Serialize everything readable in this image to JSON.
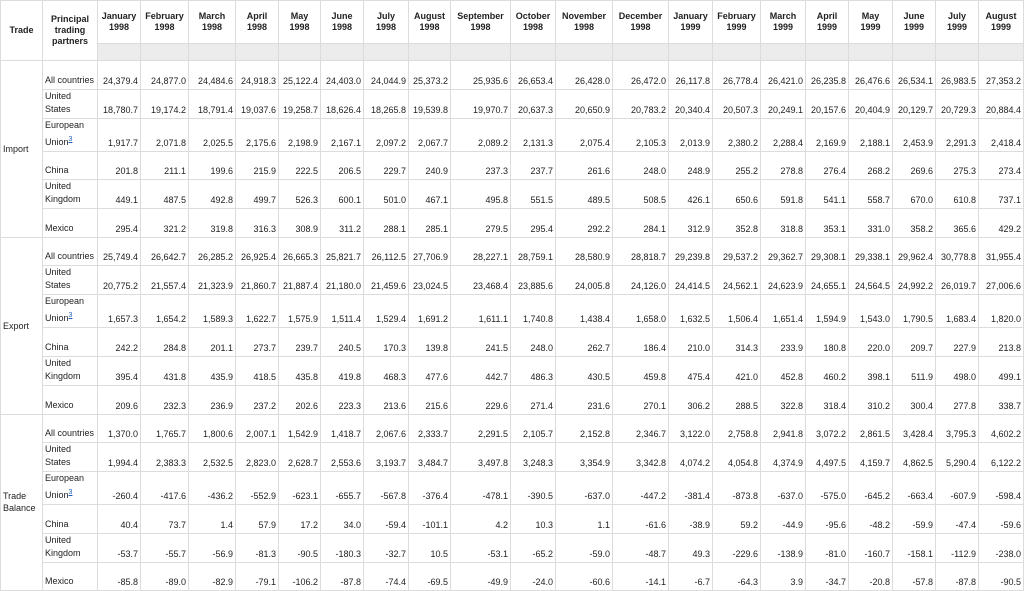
{
  "table": {
    "header": [
      "Trade",
      "Principal trading partners",
      "January 1998",
      "February 1998",
      "March 1998",
      "April 1998",
      "May 1998",
      "June 1998",
      "July 1998",
      "August 1998",
      "September 1998",
      "October 1998",
      "November 1998",
      "December 1998",
      "January 1999",
      "February 1999",
      "March 1999",
      "April 1999",
      "May 1999",
      "June 1999",
      "July 1999",
      "August 1999"
    ],
    "groups": [
      {
        "label": "Import",
        "rows": [
          {
            "partner": "All countries",
            "values": [
              "24,379.4",
              "24,877.0",
              "24,484.6",
              "24,918.3",
              "25,122.4",
              "24,403.0",
              "24,044.9",
              "25,373.2",
              "25,935.6",
              "26,653.4",
              "26,428.0",
              "26,472.0",
              "26,117.8",
              "26,778.4",
              "26,421.0",
              "26,235.8",
              "26,476.6",
              "26,534.1",
              "26,983.5",
              "27,353.2"
            ]
          },
          {
            "partner": "United States",
            "values": [
              "18,780.7",
              "19,174.2",
              "18,791.4",
              "19,037.6",
              "19,258.7",
              "18,626.4",
              "18,265.8",
              "19,539.8",
              "19,970.7",
              "20,637.3",
              "20,650.9",
              "20,783.2",
              "20,340.4",
              "20,507.3",
              "20,249.1",
              "20,157.6",
              "20,404.9",
              "20,129.7",
              "20,729.3",
              "20,884.4"
            ]
          },
          {
            "partner": "European Union",
            "note": "3",
            "values": [
              "1,917.7",
              "2,071.8",
              "2,025.5",
              "2,175.6",
              "2,198.9",
              "2,167.1",
              "2,097.2",
              "2,067.7",
              "2,089.2",
              "2,131.3",
              "2,075.4",
              "2,105.3",
              "2,013.9",
              "2,380.2",
              "2,288.4",
              "2,169.9",
              "2,188.1",
              "2,453.9",
              "2,291.3",
              "2,418.4"
            ]
          },
          {
            "partner": "China",
            "values": [
              "201.8",
              "211.1",
              "199.6",
              "215.9",
              "222.5",
              "206.5",
              "229.7",
              "240.9",
              "237.3",
              "237.7",
              "261.6",
              "248.0",
              "248.9",
              "255.2",
              "278.8",
              "276.4",
              "268.2",
              "269.6",
              "275.3",
              "273.4"
            ]
          },
          {
            "partner": "United Kingdom",
            "values": [
              "449.1",
              "487.5",
              "492.8",
              "499.7",
              "526.3",
              "600.1",
              "501.0",
              "467.1",
              "495.8",
              "551.5",
              "489.5",
              "508.5",
              "426.1",
              "650.6",
              "591.8",
              "541.1",
              "558.7",
              "670.0",
              "610.8",
              "737.1"
            ]
          },
          {
            "partner": "Mexico",
            "values": [
              "295.4",
              "321.2",
              "319.8",
              "316.3",
              "308.9",
              "311.2",
              "288.1",
              "285.1",
              "279.5",
              "295.4",
              "292.2",
              "284.1",
              "312.9",
              "352.8",
              "318.8",
              "353.1",
              "331.0",
              "358.2",
              "365.6",
              "429.2"
            ]
          }
        ]
      },
      {
        "label": "Export",
        "rows": [
          {
            "partner": "All countries",
            "values": [
              "25,749.4",
              "26,642.7",
              "26,285.2",
              "26,925.4",
              "26,665.3",
              "25,821.7",
              "26,112.5",
              "27,706.9",
              "28,227.1",
              "28,759.1",
              "28,580.9",
              "28,818.7",
              "29,239.8",
              "29,537.2",
              "29,362.7",
              "29,308.1",
              "29,338.1",
              "29,962.4",
              "30,778.8",
              "31,955.4"
            ]
          },
          {
            "partner": "United States",
            "values": [
              "20,775.2",
              "21,557.4",
              "21,323.9",
              "21,860.7",
              "21,887.4",
              "21,180.0",
              "21,459.6",
              "23,024.5",
              "23,468.4",
              "23,885.6",
              "24,005.8",
              "24,126.0",
              "24,414.5",
              "24,562.1",
              "24,623.9",
              "24,655.1",
              "24,564.5",
              "24,992.2",
              "26,019.7",
              "27,006.6"
            ]
          },
          {
            "partner": "European Union",
            "note": "3",
            "values": [
              "1,657.3",
              "1,654.2",
              "1,589.3",
              "1,622.7",
              "1,575.9",
              "1,511.4",
              "1,529.4",
              "1,691.2",
              "1,611.1",
              "1,740.8",
              "1,438.4",
              "1,658.0",
              "1,632.5",
              "1,506.4",
              "1,651.4",
              "1,594.9",
              "1,543.0",
              "1,790.5",
              "1,683.4",
              "1,820.0"
            ]
          },
          {
            "partner": "China",
            "values": [
              "242.2",
              "284.8",
              "201.1",
              "273.7",
              "239.7",
              "240.5",
              "170.3",
              "139.8",
              "241.5",
              "248.0",
              "262.7",
              "186.4",
              "210.0",
              "314.3",
              "233.9",
              "180.8",
              "220.0",
              "209.7",
              "227.9",
              "213.8"
            ]
          },
          {
            "partner": "United Kingdom",
            "values": [
              "395.4",
              "431.8",
              "435.9",
              "418.5",
              "435.8",
              "419.8",
              "468.3",
              "477.6",
              "442.7",
              "486.3",
              "430.5",
              "459.8",
              "475.4",
              "421.0",
              "452.8",
              "460.2",
              "398.1",
              "511.9",
              "498.0",
              "499.1"
            ]
          },
          {
            "partner": "Mexico",
            "values": [
              "209.6",
              "232.3",
              "236.9",
              "237.2",
              "202.6",
              "223.3",
              "213.6",
              "215.6",
              "229.6",
              "271.4",
              "231.6",
              "270.1",
              "306.2",
              "288.5",
              "322.8",
              "318.4",
              "310.2",
              "300.4",
              "277.8",
              "338.7"
            ]
          }
        ]
      },
      {
        "label": "Trade Balance",
        "rows": [
          {
            "partner": "All countries",
            "values": [
              "1,370.0",
              "1,765.7",
              "1,800.6",
              "2,007.1",
              "1,542.9",
              "1,418.7",
              "2,067.6",
              "2,333.7",
              "2,291.5",
              "2,105.7",
              "2,152.8",
              "2,346.7",
              "3,122.0",
              "2,758.8",
              "2,941.8",
              "3,072.2",
              "2,861.5",
              "3,428.4",
              "3,795.3",
              "4,602.2"
            ]
          },
          {
            "partner": "United States",
            "values": [
              "1,994.4",
              "2,383.3",
              "2,532.5",
              "2,823.0",
              "2,628.7",
              "2,553.6",
              "3,193.7",
              "3,484.7",
              "3,497.8",
              "3,248.3",
              "3,354.9",
              "3,342.8",
              "4,074.2",
              "4,054.8",
              "4,374.9",
              "4,497.5",
              "4,159.7",
              "4,862.5",
              "5,290.4",
              "6,122.2"
            ]
          },
          {
            "partner": "European Union",
            "note": "3",
            "values": [
              "-260.4",
              "-417.6",
              "-436.2",
              "-552.9",
              "-623.1",
              "-655.7",
              "-567.8",
              "-376.4",
              "-478.1",
              "-390.5",
              "-637.0",
              "-447.2",
              "-381.4",
              "-873.8",
              "-637.0",
              "-575.0",
              "-645.2",
              "-663.4",
              "-607.9",
              "-598.4"
            ]
          },
          {
            "partner": "China",
            "values": [
              "40.4",
              "73.7",
              "1.4",
              "57.9",
              "17.2",
              "34.0",
              "-59.4",
              "-101.1",
              "4.2",
              "10.3",
              "1.1",
              "-61.6",
              "-38.9",
              "59.2",
              "-44.9",
              "-95.6",
              "-48.2",
              "-59.9",
              "-47.4",
              "-59.6"
            ]
          },
          {
            "partner": "United Kingdom",
            "values": [
              "-53.7",
              "-55.7",
              "-56.9",
              "-81.3",
              "-90.5",
              "-180.3",
              "-32.7",
              "10.5",
              "-53.1",
              "-65.2",
              "-59.0",
              "-48.7",
              "49.3",
              "-229.6",
              "-138.9",
              "-81.0",
              "-160.7",
              "-158.1",
              "-112.9",
              "-238.0"
            ]
          },
          {
            "partner": "Mexico",
            "values": [
              "-85.8",
              "-89.0",
              "-82.9",
              "-79.1",
              "-106.2",
              "-87.8",
              "-74.4",
              "-69.5",
              "-49.9",
              "-24.0",
              "-60.6",
              "-14.1",
              "-6.7",
              "-64.3",
              "3.9",
              "-34.7",
              "-20.8",
              "-57.8",
              "-87.8",
              "-90.5"
            ]
          }
        ]
      }
    ]
  }
}
